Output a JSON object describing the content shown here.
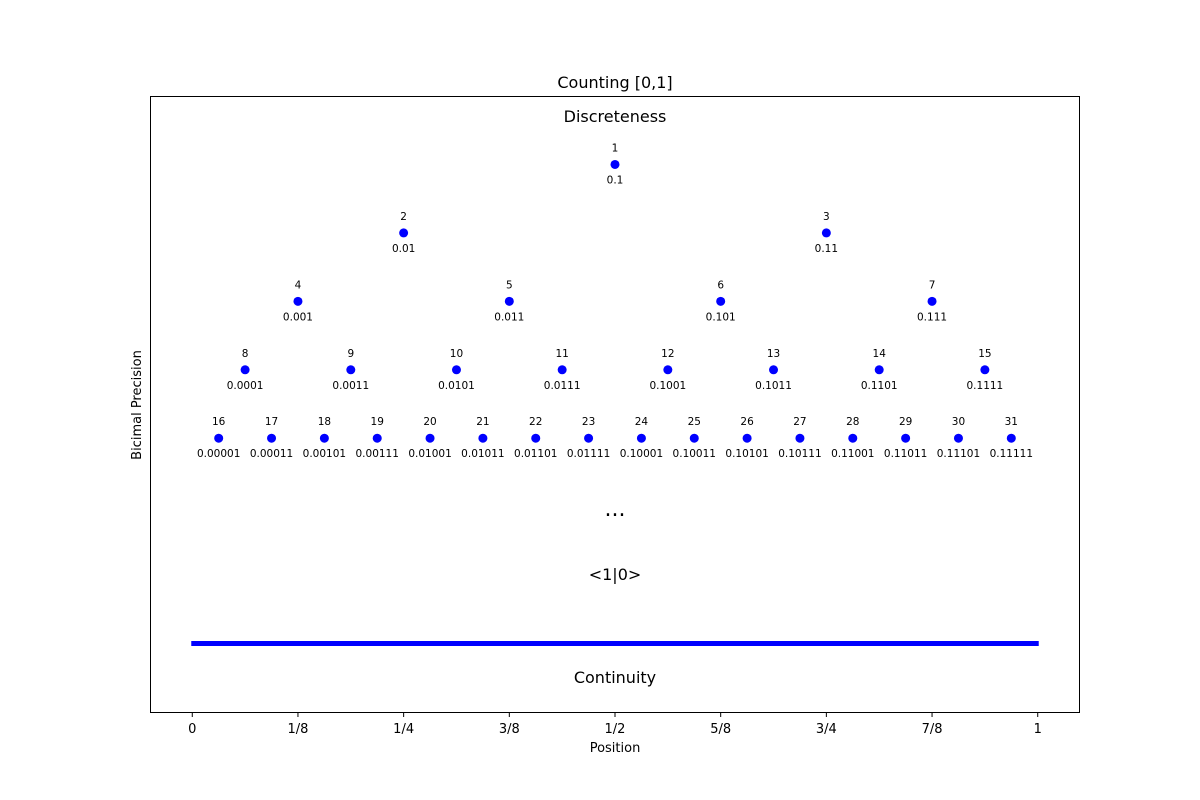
{
  "chart_data": {
    "type": "scatter",
    "title": "Counting [0,1]",
    "xlabel": "Position",
    "ylabel": "Bicimal Precision",
    "xlim": [
      -0.05,
      1.05
    ],
    "ylim": [
      -1,
      8
    ],
    "grid": false,
    "legend": "none",
    "x_ticks": [
      0,
      0.125,
      0.25,
      0.375,
      0.5,
      0.625,
      0.75,
      0.875,
      1
    ],
    "x_tick_labels": [
      "0",
      "1/8",
      "1/4",
      "3/8",
      "1/2",
      "5/8",
      "3/4",
      "7/8",
      "1"
    ],
    "top_label": "Discreteness",
    "ellipsis_label": "...",
    "limit_label": "<1|0>",
    "bottom_label": "Continuity",
    "continuum_line": {
      "x": [
        0,
        1
      ],
      "y": 0
    },
    "point_color": "#0000ff",
    "line_color": "#0000ff",
    "points": [
      {
        "n": "1",
        "bits": "0.1",
        "x": 0.5,
        "y": 7
      },
      {
        "n": "2",
        "bits": "0.01",
        "x": 0.25,
        "y": 6
      },
      {
        "n": "3",
        "bits": "0.11",
        "x": 0.75,
        "y": 6
      },
      {
        "n": "4",
        "bits": "0.001",
        "x": 0.125,
        "y": 5
      },
      {
        "n": "5",
        "bits": "0.011",
        "x": 0.375,
        "y": 5
      },
      {
        "n": "6",
        "bits": "0.101",
        "x": 0.625,
        "y": 5
      },
      {
        "n": "7",
        "bits": "0.111",
        "x": 0.875,
        "y": 5
      },
      {
        "n": "8",
        "bits": "0.0001",
        "x": 0.0625,
        "y": 4
      },
      {
        "n": "9",
        "bits": "0.0011",
        "x": 0.1875,
        "y": 4
      },
      {
        "n": "10",
        "bits": "0.0101",
        "x": 0.3125,
        "y": 4
      },
      {
        "n": "11",
        "bits": "0.0111",
        "x": 0.4375,
        "y": 4
      },
      {
        "n": "12",
        "bits": "0.1001",
        "x": 0.5625,
        "y": 4
      },
      {
        "n": "13",
        "bits": "0.1011",
        "x": 0.6875,
        "y": 4
      },
      {
        "n": "14",
        "bits": "0.1101",
        "x": 0.8125,
        "y": 4
      },
      {
        "n": "15",
        "bits": "0.1111",
        "x": 0.9375,
        "y": 4
      },
      {
        "n": "16",
        "bits": "0.00001",
        "x": 0.03125,
        "y": 3
      },
      {
        "n": "17",
        "bits": "0.00011",
        "x": 0.09375,
        "y": 3
      },
      {
        "n": "18",
        "bits": "0.00101",
        "x": 0.15625,
        "y": 3
      },
      {
        "n": "19",
        "bits": "0.00111",
        "x": 0.21875,
        "y": 3
      },
      {
        "n": "20",
        "bits": "0.01001",
        "x": 0.28125,
        "y": 3
      },
      {
        "n": "21",
        "bits": "0.01011",
        "x": 0.34375,
        "y": 3
      },
      {
        "n": "22",
        "bits": "0.01101",
        "x": 0.40625,
        "y": 3
      },
      {
        "n": "23",
        "bits": "0.01111",
        "x": 0.46875,
        "y": 3
      },
      {
        "n": "24",
        "bits": "0.10001",
        "x": 0.53125,
        "y": 3
      },
      {
        "n": "25",
        "bits": "0.10011",
        "x": 0.59375,
        "y": 3
      },
      {
        "n": "26",
        "bits": "0.10101",
        "x": 0.65625,
        "y": 3
      },
      {
        "n": "27",
        "bits": "0.10111",
        "x": 0.71875,
        "y": 3
      },
      {
        "n": "28",
        "bits": "0.11001",
        "x": 0.78125,
        "y": 3
      },
      {
        "n": "29",
        "bits": "0.11011",
        "x": 0.84375,
        "y": 3
      },
      {
        "n": "30",
        "bits": "0.11101",
        "x": 0.90625,
        "y": 3
      },
      {
        "n": "31",
        "bits": "0.11111",
        "x": 0.96875,
        "y": 3
      }
    ]
  }
}
